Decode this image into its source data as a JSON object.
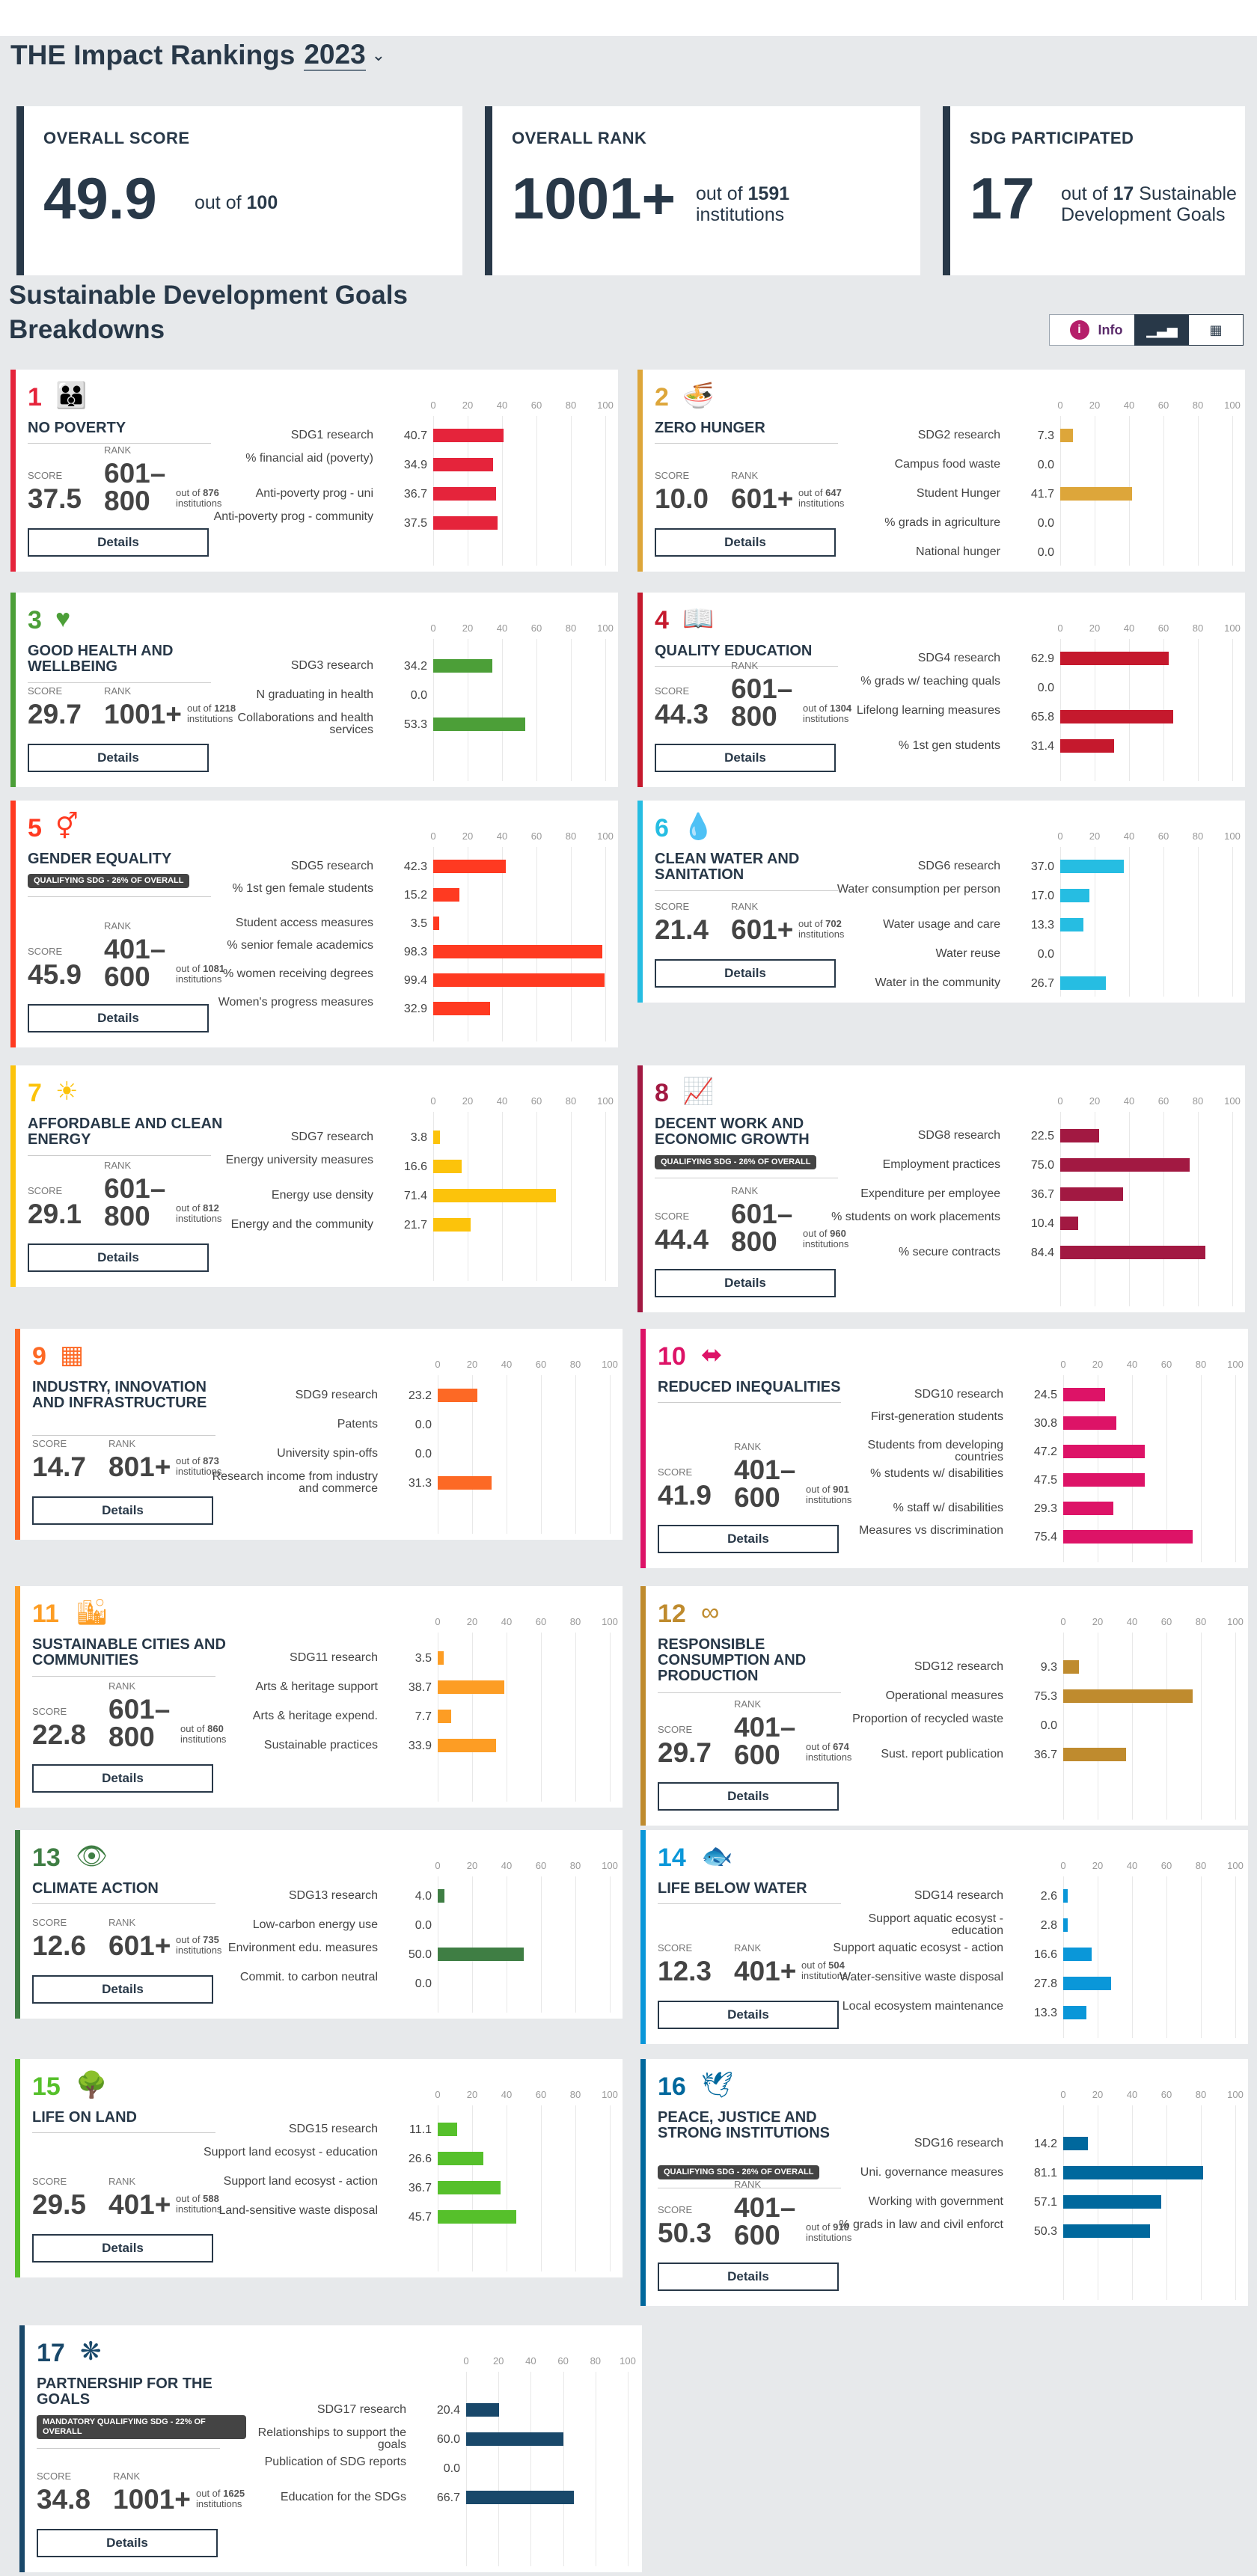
{
  "header": {
    "title": "THE Impact Rankings",
    "year": "2023"
  },
  "summary": {
    "overall_score": {
      "label": "OVERALL SCORE",
      "value": "49.9",
      "note_prefix": "out of",
      "note_value": "100"
    },
    "overall_rank": {
      "label": "OVERALL RANK",
      "value": "1001+",
      "note_prefix": "out of",
      "note_value": "1591",
      "note_suffix": "institutions"
    },
    "sdg_participated": {
      "label": "SDG PARTICIPATED",
      "value": "17",
      "note_prefix": "out of",
      "note_value": "17",
      "note_suffix": "Sustainable Development Goals"
    }
  },
  "section": {
    "title_line1": "Sustainable Development Goals",
    "title_line2": "Breakdowns",
    "info_label": "Info"
  },
  "view_toggle": {
    "icon_chart": "bar-chart-icon",
    "icon_table": "table-icon"
  },
  "labels": {
    "score": "SCORE",
    "rank": "RANK",
    "out_of": "out of",
    "institutions": "institutions",
    "details": "Details"
  },
  "axis_ticks": [
    "0",
    "20",
    "40",
    "60",
    "80",
    "100"
  ],
  "chart_data": [
    {
      "type": "bar",
      "sdg": "1",
      "title": "NO POVERTY",
      "color": "#e5243b",
      "icon": "family-icon",
      "score": "37.5",
      "rank": "601–800",
      "of": "876",
      "badge": "",
      "xlim": [
        0,
        100
      ],
      "categories": [
        "SDG1 research",
        "% financial aid (poverty)",
        "Anti-poverty prog - uni",
        "Anti-poverty prog - community"
      ],
      "values": [
        40.7,
        34.9,
        36.7,
        37.5
      ]
    },
    {
      "type": "bar",
      "sdg": "2",
      "title": "ZERO HUNGER",
      "color": "#dda63a",
      "icon": "bowl-icon",
      "score": "10.0",
      "rank": "601+",
      "of": "647",
      "badge": "",
      "xlim": [
        0,
        100
      ],
      "categories": [
        "SDG2 research",
        "Campus food waste",
        "Student Hunger",
        "% grads in agriculture",
        "National hunger"
      ],
      "values": [
        7.3,
        0.0,
        41.7,
        0.0,
        0.0
      ]
    },
    {
      "type": "bar",
      "sdg": "3",
      "title": "GOOD HEALTH AND WELLBEING",
      "color": "#4c9f38",
      "icon": "heartbeat-icon",
      "score": "29.7",
      "rank": "1001+",
      "of": "1218",
      "badge": "",
      "xlim": [
        0,
        100
      ],
      "categories": [
        "SDG3 research",
        "N graduating in health",
        "Collaborations and health services"
      ],
      "values": [
        34.2,
        0.0,
        53.3
      ]
    },
    {
      "type": "bar",
      "sdg": "4",
      "title": "QUALITY EDUCATION",
      "color": "#c5192d",
      "icon": "book-icon",
      "score": "44.3",
      "rank": "601–800",
      "of": "1304",
      "badge": "",
      "xlim": [
        0,
        100
      ],
      "categories": [
        "SDG4 research",
        "% grads w/ teaching quals",
        "Lifelong learning measures",
        "% 1st gen students"
      ],
      "values": [
        62.9,
        0.0,
        65.8,
        31.4
      ]
    },
    {
      "type": "bar",
      "sdg": "5",
      "title": "GENDER EQUALITY",
      "color": "#ff3a21",
      "icon": "gender-icon",
      "score": "45.9",
      "rank": "401–600",
      "of": "1081",
      "badge": "QUALIFYING SDG - 26% OF OVERALL",
      "xlim": [
        0,
        100
      ],
      "categories": [
        "SDG5 research",
        "% 1st gen female students",
        "Student access measures",
        "% senior female academics",
        "% women receiving degrees",
        "Women's progress measures"
      ],
      "values": [
        42.3,
        15.2,
        3.5,
        98.3,
        99.4,
        32.9
      ]
    },
    {
      "type": "bar",
      "sdg": "6",
      "title": "CLEAN WATER AND SANITATION",
      "color": "#26bde2",
      "icon": "water-drop-icon",
      "score": "21.4",
      "rank": "601+",
      "of": "702",
      "badge": "",
      "xlim": [
        0,
        100
      ],
      "categories": [
        "SDG6 research",
        "Water consumption per person",
        "Water usage and care",
        "Water reuse",
        "Water in the community"
      ],
      "values": [
        37.0,
        17.0,
        13.3,
        0.0,
        26.7
      ]
    },
    {
      "type": "bar",
      "sdg": "7",
      "title": "AFFORDABLE AND CLEAN ENERGY",
      "color": "#fcc30b",
      "icon": "sun-icon",
      "score": "29.1",
      "rank": "601–800",
      "of": "812",
      "badge": "",
      "xlim": [
        0,
        100
      ],
      "categories": [
        "SDG7 research",
        "Energy university measures",
        "Energy use density",
        "Energy and the community"
      ],
      "values": [
        3.8,
        16.6,
        71.4,
        21.7
      ]
    },
    {
      "type": "bar",
      "sdg": "8",
      "title": "DECENT WORK AND ECONOMIC GROWTH",
      "color": "#a21942",
      "icon": "growth-chart-icon",
      "score": "44.4",
      "rank": "601–800",
      "of": "960",
      "badge": "QUALIFYING SDG - 26% OF OVERALL",
      "xlim": [
        0,
        100
      ],
      "categories": [
        "SDG8 research",
        "Employment practices",
        "Expenditure per employee",
        "% students on work placements",
        "% secure contracts"
      ],
      "values": [
        22.5,
        75.0,
        36.7,
        10.4,
        84.4
      ]
    },
    {
      "type": "bar",
      "sdg": "9",
      "title": "INDUSTRY, INNOVATION AND INFRASTRUCTURE",
      "color": "#fd6925",
      "icon": "cubes-icon",
      "score": "14.7",
      "rank": "801+",
      "of": "873",
      "badge": "",
      "xlim": [
        0,
        100
      ],
      "categories": [
        "SDG9 research",
        "Patents",
        "University spin-offs",
        "Research income from industry and commerce"
      ],
      "values": [
        23.2,
        0.0,
        0.0,
        31.3
      ]
    },
    {
      "type": "bar",
      "sdg": "10",
      "title": "REDUCED INEQUALITIES",
      "color": "#dd1367",
      "icon": "arrows-icon",
      "score": "41.9",
      "rank": "401–600",
      "of": "901",
      "badge": "",
      "xlim": [
        0,
        100
      ],
      "categories": [
        "SDG10 research",
        "First-generation students",
        "Students from developing countries",
        "% students w/ disabilities",
        "% staff w/ disabilities",
        "Measures vs discrimination"
      ],
      "values": [
        24.5,
        30.8,
        47.2,
        47.5,
        29.3,
        75.4
      ]
    },
    {
      "type": "bar",
      "sdg": "11",
      "title": "SUSTAINABLE CITIES AND COMMUNITIES",
      "color": "#fd9d24",
      "icon": "city-icon",
      "score": "22.8",
      "rank": "601–800",
      "of": "860",
      "badge": "",
      "xlim": [
        0,
        100
      ],
      "categories": [
        "SDG11 research",
        "Arts & heritage support",
        "Arts & heritage expend.",
        "Sustainable practices"
      ],
      "values": [
        3.5,
        38.7,
        7.7,
        33.9
      ]
    },
    {
      "type": "bar",
      "sdg": "12",
      "title": "RESPONSIBLE CONSUMPTION AND PRODUCTION",
      "color": "#bf8b2e",
      "icon": "infinity-icon",
      "score": "29.7",
      "rank": "401–600",
      "of": "674",
      "badge": "",
      "xlim": [
        0,
        100
      ],
      "categories": [
        "SDG12 research",
        "Operational measures",
        "Proportion of recycled waste",
        "Sust. report publication"
      ],
      "values": [
        9.3,
        75.3,
        0.0,
        36.7
      ]
    },
    {
      "type": "bar",
      "sdg": "13",
      "title": "CLIMATE ACTION",
      "color": "#3f7e44",
      "icon": "eye-icon",
      "score": "12.6",
      "rank": "601+",
      "of": "735",
      "badge": "",
      "xlim": [
        0,
        100
      ],
      "categories": [
        "SDG13 research",
        "Low-carbon energy use",
        "Environment edu. measures",
        "Commit. to carbon neutral"
      ],
      "values": [
        4.0,
        0.0,
        50.0,
        0.0
      ]
    },
    {
      "type": "bar",
      "sdg": "14",
      "title": "LIFE BELOW WATER",
      "color": "#0a97d9",
      "icon": "fish-icon",
      "score": "12.3",
      "rank": "401+",
      "of": "504",
      "badge": "",
      "xlim": [
        0,
        100
      ],
      "categories": [
        "SDG14 research",
        "Support aquatic ecosyst - education",
        "Support aquatic ecosyst - action",
        "Water-sensitive waste disposal",
        "Local ecosystem maintenance"
      ],
      "values": [
        2.6,
        2.8,
        16.6,
        27.8,
        13.3
      ]
    },
    {
      "type": "bar",
      "sdg": "15",
      "title": "LIFE ON LAND",
      "color": "#56c02b",
      "icon": "tree-icon",
      "score": "29.5",
      "rank": "401+",
      "of": "588",
      "badge": "",
      "xlim": [
        0,
        100
      ],
      "categories": [
        "SDG15 research",
        "Support land ecosyst - education",
        "Support land ecosyst - action",
        "Land-sensitive waste disposal"
      ],
      "values": [
        11.1,
        26.6,
        36.7,
        45.7
      ]
    },
    {
      "type": "bar",
      "sdg": "16",
      "title": "PEACE, JUSTICE AND STRONG INSTITUTIONS",
      "color": "#00689d",
      "icon": "dove-icon",
      "score": "50.3",
      "rank": "401–600",
      "of": "910",
      "badge": "QUALIFYING SDG - 26% OF OVERALL",
      "xlim": [
        0,
        100
      ],
      "categories": [
        "SDG16 research",
        "Uni. governance measures",
        "Working with government",
        "% grads in law and civil enforct"
      ],
      "values": [
        14.2,
        81.1,
        57.1,
        50.3
      ]
    },
    {
      "type": "bar",
      "sdg": "17",
      "title": "PARTNERSHIP FOR THE GOALS",
      "color": "#19486a",
      "icon": "rings-icon",
      "score": "34.8",
      "rank": "1001+",
      "of": "1625",
      "badge": "MANDATORY QUALIFYING SDG - 22% OF OVERALL",
      "xlim": [
        0,
        100
      ],
      "categories": [
        "SDG17 research",
        "Relationships to support the goals",
        "Publication of SDG reports",
        "Education for the SDGs"
      ],
      "values": [
        20.4,
        60.0,
        0.0,
        66.7
      ]
    }
  ]
}
